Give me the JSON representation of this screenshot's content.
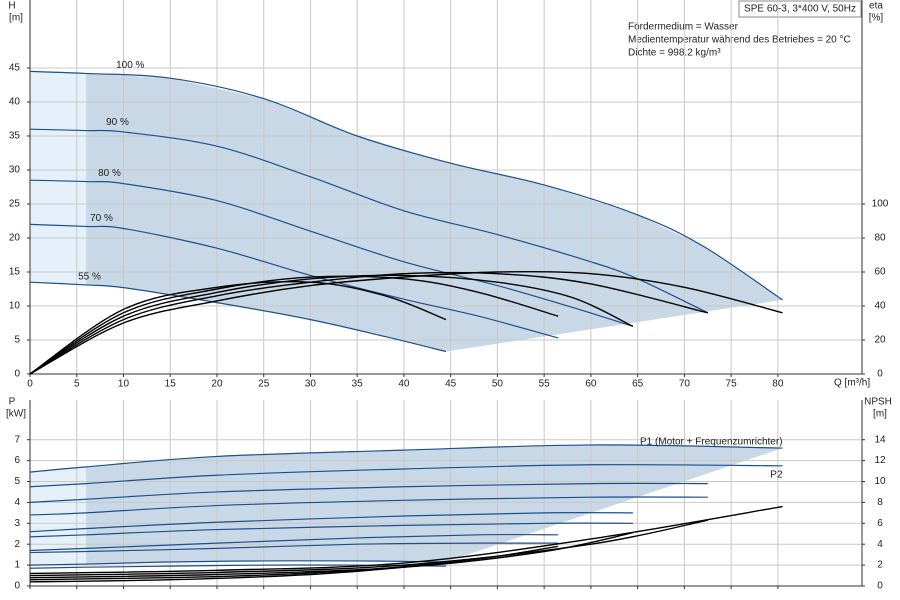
{
  "chart_data": [
    {
      "type": "line",
      "title": "SPE 60-3, 3*400 V, 50Hz",
      "notes": [
        "Fördermedium = Wasser",
        "Medientemperatur während des Betriebes = 20 °C",
        "Dichte = 998.2 kg/m³"
      ],
      "ylabel": "H",
      "yunit": "[m]",
      "y2label": "eta",
      "y2unit": "[%]",
      "xlabel": "Q [m³/h]",
      "xlim": [
        0,
        89
      ],
      "ylim": [
        0,
        55
      ],
      "y2lim": [
        0,
        220
      ],
      "xticks": [
        0,
        5,
        10,
        15,
        20,
        25,
        30,
        35,
        40,
        45,
        50,
        55,
        60,
        65,
        70,
        75,
        80
      ],
      "yticks": [
        0,
        5,
        10,
        15,
        20,
        25,
        30,
        35,
        40,
        45
      ],
      "y2ticks": [
        0,
        20,
        40,
        60,
        80,
        100
      ],
      "grid": true,
      "area_color": "#c8d8e7",
      "area_light_color": "#e6f0fa",
      "series": [
        {
          "name": "100 %",
          "color": "#1d4f8a",
          "x": [
            0,
            6,
            15,
            25,
            35,
            45,
            55,
            65,
            72,
            80.5
          ],
          "values": [
            44.5,
            44.2,
            43.5,
            40.5,
            35,
            31,
            27.8,
            23.4,
            18.8,
            10.9
          ]
        },
        {
          "name": "90 %",
          "color": "#1d4f8a",
          "x": [
            0,
            6,
            10,
            20,
            30,
            40,
            50,
            60,
            65,
            72.5
          ],
          "values": [
            36,
            35.8,
            35.6,
            33.5,
            29,
            24,
            20.5,
            16.5,
            14,
            9
          ]
        },
        {
          "name": "80 %",
          "color": "#1d4f8a",
          "x": [
            0,
            6,
            10,
            20,
            30,
            40,
            50,
            58,
            64.5
          ],
          "values": [
            28.5,
            28.3,
            28,
            25.5,
            21,
            16.5,
            13,
            9.8,
            7
          ]
        },
        {
          "name": "70 %",
          "color": "#1d4f8a",
          "x": [
            0,
            6,
            10,
            20,
            30,
            40,
            48,
            56.5
          ],
          "values": [
            22,
            21.7,
            21.4,
            18.5,
            14.5,
            11,
            8.5,
            5.3
          ]
        },
        {
          "name": "55 %",
          "color": "#1d4f8a",
          "x": [
            0,
            6,
            10,
            20,
            30,
            38,
            44.5
          ],
          "values": [
            13.5,
            13.1,
            12.7,
            10.5,
            8,
            5.5,
            3.3
          ]
        },
        {
          "color": "#000000",
          "axis": "y2",
          "x": [
            0,
            10,
            20,
            30,
            40,
            50,
            60,
            70,
            80.5
          ],
          "values": [
            0,
            30,
            43,
            52,
            57,
            60,
            59,
            51,
            36
          ]
        },
        {
          "color": "#000000",
          "axis": "y2",
          "x": [
            0,
            10,
            20,
            30,
            40,
            50,
            60,
            72.5
          ],
          "values": [
            0,
            32,
            46,
            54,
            59,
            59,
            53,
            36
          ]
        },
        {
          "color": "#000000",
          "axis": "y2",
          "x": [
            0,
            10,
            20,
            30,
            40,
            50,
            58,
            64.5
          ],
          "values": [
            0,
            34,
            48,
            56,
            58,
            54,
            45,
            28
          ]
        },
        {
          "color": "#000000",
          "axis": "y2",
          "x": [
            0,
            10,
            20,
            30,
            40,
            48,
            56.5
          ],
          "values": [
            0,
            36,
            50,
            57,
            56,
            48,
            34
          ]
        },
        {
          "color": "#000000",
          "axis": "y2",
          "x": [
            0,
            10,
            20,
            30,
            38,
            44.5
          ],
          "values": [
            0,
            38,
            51,
            54,
            46,
            32
          ]
        }
      ]
    },
    {
      "type": "line",
      "ylabel": "P",
      "yunit": "[kW]",
      "y2label": "NPSH",
      "y2unit": "[m]",
      "xlim": [
        0,
        89
      ],
      "ylim": [
        0,
        8.9
      ],
      "y2lim": [
        0,
        17.8
      ],
      "xticks": [
        0,
        5,
        10,
        15,
        20,
        25,
        30,
        35,
        40,
        45,
        50,
        55,
        60,
        65,
        70,
        75,
        80
      ],
      "yticks": [
        0,
        1,
        2,
        3,
        4,
        5,
        6,
        7
      ],
      "y2ticks": [
        0,
        2,
        4,
        6,
        8,
        10,
        12,
        14
      ],
      "grid": true,
      "area_color": "#c8d8e7",
      "area_light_color": "#e6f0fa",
      "series": [
        {
          "name": "P1 (Motor + Frequenzumrichter)",
          "color": "#1d4f8a",
          "x": [
            0,
            6,
            20,
            40,
            60,
            80.5
          ],
          "values": [
            5.45,
            5.7,
            6.2,
            6.5,
            6.75,
            6.6
          ]
        },
        {
          "color": "#1d4f8a",
          "x": [
            0,
            6,
            20,
            40,
            60,
            72.5
          ],
          "values": [
            4.0,
            4.15,
            4.5,
            4.75,
            4.9,
            4.9
          ]
        },
        {
          "color": "#1d4f8a",
          "x": [
            0,
            6,
            20,
            40,
            55,
            64.5
          ],
          "values": [
            2.6,
            2.75,
            3.05,
            3.35,
            3.5,
            3.5
          ]
        },
        {
          "color": "#1d4f8a",
          "x": [
            0,
            6,
            20,
            35,
            48,
            56.5
          ],
          "values": [
            1.7,
            1.8,
            2.05,
            2.3,
            2.45,
            2.45
          ]
        },
        {
          "color": "#1d4f8a",
          "x": [
            0,
            6,
            15,
            25,
            35,
            44.5
          ],
          "values": [
            1.0,
            1.05,
            1.15,
            1.2,
            1.2,
            1.15
          ]
        },
        {
          "name": "P2",
          "color": "#1d4f8a",
          "x": [
            0,
            6,
            20,
            40,
            60,
            80.5
          ],
          "values": [
            4.75,
            4.9,
            5.3,
            5.6,
            5.8,
            5.75
          ]
        },
        {
          "color": "#1d4f8a",
          "x": [
            0,
            6,
            20,
            40,
            60,
            72.5
          ],
          "values": [
            3.4,
            3.5,
            3.85,
            4.1,
            4.25,
            4.25
          ]
        },
        {
          "color": "#1d4f8a",
          "x": [
            0,
            6,
            20,
            40,
            55,
            64.5
          ],
          "values": [
            2.35,
            2.45,
            2.7,
            2.9,
            3.0,
            3.0
          ]
        },
        {
          "color": "#1d4f8a",
          "x": [
            0,
            6,
            20,
            35,
            48,
            56.5
          ],
          "values": [
            1.6,
            1.65,
            1.8,
            2.0,
            2.05,
            2.05
          ]
        },
        {
          "color": "#1d4f8a",
          "x": [
            0,
            6,
            15,
            25,
            35,
            44.5
          ],
          "values": [
            0.85,
            0.9,
            0.95,
            1.0,
            1.0,
            0.95
          ]
        },
        {
          "color": "#000000",
          "axis": "y2",
          "x": [
            0,
            20,
            40,
            60,
            80.5
          ],
          "values": [
            1.2,
            1.5,
            2.2,
            4.5,
            7.6
          ]
        },
        {
          "color": "#000000",
          "axis": "y2",
          "x": [
            0,
            20,
            40,
            60,
            72.5
          ],
          "values": [
            1.0,
            1.3,
            2.0,
            4.0,
            6.3
          ]
        },
        {
          "color": "#000000",
          "axis": "y2",
          "x": [
            0,
            20,
            40,
            55,
            64.5
          ],
          "values": [
            0.8,
            1.1,
            1.8,
            3.3,
            5.1
          ]
        },
        {
          "color": "#000000",
          "axis": "y2",
          "x": [
            0,
            20,
            35,
            48,
            56.5
          ],
          "values": [
            0.6,
            0.9,
            1.5,
            2.6,
            3.8
          ]
        },
        {
          "color": "#000000",
          "axis": "y2",
          "x": [
            0,
            15,
            30,
            40,
            44.5
          ],
          "values": [
            0.4,
            0.6,
            1.1,
            1.8,
            2.3
          ]
        }
      ]
    }
  ]
}
